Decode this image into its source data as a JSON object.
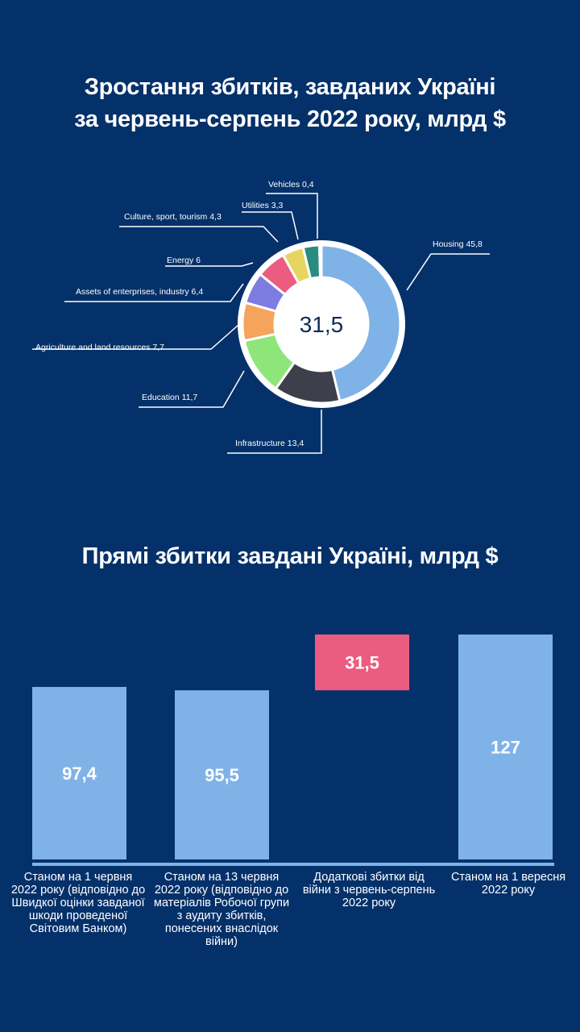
{
  "chart_data": [
    {
      "type": "pie",
      "title": "Зростання збитків, завданих Україні за червень-серпень 2022 року, млрд $",
      "center_label": "31,5",
      "slices": [
        {
          "label": "Housing 45,8",
          "name": "Housing",
          "value": 45.8,
          "color": "#7fb3e8"
        },
        {
          "label": "Infrastructure 13,4",
          "name": "Infrastructure",
          "value": 13.4,
          "color": "#3e3f4b"
        },
        {
          "label": "Education 11,7",
          "name": "Education",
          "value": 11.7,
          "color": "#8ee67b"
        },
        {
          "label": "Agriculture and land resources 7,7",
          "name": "Agriculture and land resources",
          "value": 7.7,
          "color": "#f4a45b"
        },
        {
          "label": "Assets of enterprises, industry 6,4",
          "name": "Assets of enterprises, industry",
          "value": 6.4,
          "color": "#7c7ce2"
        },
        {
          "label": "Energy 6",
          "name": "Energy",
          "value": 6,
          "color": "#ec5b80"
        },
        {
          "label": "Culture, sport, tourism 4,3",
          "name": "Culture, sport, tourism",
          "value": 4.3,
          "color": "#e6d660"
        },
        {
          "label": "Utilities 3,3",
          "name": "Utilities",
          "value": 3.3,
          "color": "#2a8b80"
        },
        {
          "label": "Vehicles 0,4",
          "name": "Vehicles",
          "value": 0.4,
          "color": "#e6554c"
        }
      ]
    },
    {
      "type": "bar",
      "subtype": "waterfall",
      "title": "Прямі збитки завдані Україні, млрд $",
      "ylim": [
        0,
        127
      ],
      "bars": [
        {
          "label": "97,4",
          "start": 0,
          "value": 97.4,
          "color": "#7fb3e8",
          "category": "Станом на 1 червня 2022 року (відповідно до Швидкої оцінки завданої шкоди проведеної Світовим Банком)"
        },
        {
          "label": "95,5",
          "start": 0,
          "value": 95.5,
          "color": "#7fb3e8",
          "category": "Станом на 13 червня 2022 року (відповідно до матеріалів Робочої групи з аудиту збитків, понесених внаслідок війни)"
        },
        {
          "label": "31,5",
          "start": 95.5,
          "value": 31.5,
          "color": "#ec5b80",
          "category": "Додаткові збитки від війни з червень-серпень 2022 року"
        },
        {
          "label": "127",
          "start": 0,
          "value": 127,
          "color": "#7fb3e8",
          "category": "Станом на 1 вересня 2022 року"
        }
      ]
    }
  ]
}
